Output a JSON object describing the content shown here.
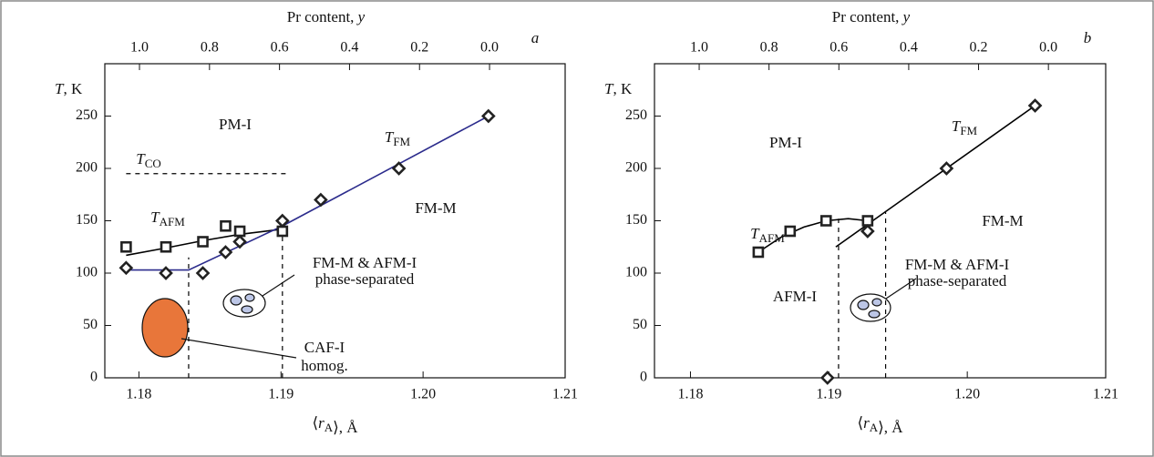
{
  "chart_data": [
    {
      "type": "scatter",
      "panel": "a",
      "x2label": {
        "pre": "Pr content, ",
        "var": "y"
      },
      "ylabel": {
        "var": "T",
        "post": ", K"
      },
      "xlabel": {
        "pre": "⟨",
        "var": "r",
        "sub": "A",
        "post": "⟩, Å"
      },
      "xlim": [
        1.1776,
        1.21
      ],
      "xticks": [
        1.18,
        1.19,
        {
          "value": 1.2,
          "label": "1.20"
        },
        1.21
      ],
      "x2lim": [
        1.099,
        -0.216
      ],
      "x2ticks": [
        {
          "value": 1,
          "label": "1.0"
        },
        0.8,
        0.6,
        0.4,
        0.2,
        {
          "value": 0,
          "label": "0.0"
        }
      ],
      "ylim": [
        0,
        300
      ],
      "yticks": [
        0,
        50,
        100,
        150,
        200,
        250
      ],
      "series": [
        {
          "marker": "square",
          "color": "#222222",
          "x": [
            1.1791,
            1.1819,
            1.1845,
            1.1861,
            1.1871,
            1.1901
          ],
          "y": [
            125,
            125,
            130,
            145,
            140,
            140
          ]
        },
        {
          "marker": "diamond",
          "color": "#222222",
          "x": [
            1.1791,
            1.1819,
            1.1845,
            1.1861,
            1.1871,
            1.1901,
            1.1928,
            1.1983,
            1.2046
          ],
          "y": [
            105,
            100,
            100,
            120,
            130,
            150,
            170,
            200,
            250
          ]
        }
      ],
      "lines": [
        {
          "color": "#000000",
          "dash": false,
          "x": [
            1.1791,
            1.1819,
            1.1845,
            1.1871,
            1.1901
          ],
          "y": [
            117,
            124,
            131,
            137,
            142
          ]
        },
        {
          "color": "#2b2b8c",
          "dash": false,
          "x": [
            1.1791,
            1.1835,
            1.1901,
            1.2046
          ],
          "y": [
            103,
            103,
            145,
            250
          ]
        },
        {
          "color": "#000000",
          "dash": true,
          "x": [
            1.1791,
            1.1905
          ],
          "y": [
            195,
            195
          ]
        },
        {
          "color": "#000000",
          "dash": true,
          "x": [
            1.1835,
            1.1835
          ],
          "y": [
            0,
            115
          ]
        },
        {
          "color": "#000000",
          "dash": true,
          "x": [
            1.1901,
            1.1901
          ],
          "y": [
            0,
            150
          ]
        }
      ],
      "labels": [
        {
          "text": "PM-I"
        },
        {
          "text": "T",
          "sub": "FM"
        },
        {
          "text": "T",
          "sub": "CO"
        },
        {
          "text": "FM-M"
        },
        {
          "text": "T",
          "sub": "AFM"
        },
        {
          "text": "FM-M & AFM-I"
        },
        {
          "text": "phase-separated"
        },
        {
          "text": "CAF-I"
        },
        {
          "text": "homog."
        },
        {
          "text": "a"
        }
      ]
    },
    {
      "type": "scatter",
      "panel": "b",
      "x2label": {
        "pre": "Pr content, ",
        "var": "y"
      },
      "ylabel": {
        "var": "T",
        "post": ", K"
      },
      "xlabel": {
        "pre": "⟨",
        "var": "r",
        "sub": "A",
        "post": "⟩, Å"
      },
      "xlim": [
        1.1774,
        1.21
      ],
      "xticks": [
        1.18,
        1.19,
        {
          "value": 1.2,
          "label": "1.20"
        },
        1.21
      ],
      "x2lim": [
        1.128,
        -0.164
      ],
      "x2ticks": [
        {
          "value": 1,
          "label": "1.0"
        },
        0.8,
        0.6,
        0.4,
        0.2,
        {
          "value": 0,
          "label": "0.0"
        }
      ],
      "ylim": [
        0,
        300
      ],
      "yticks": [
        0,
        50,
        100,
        150,
        200,
        250
      ],
      "series": [
        {
          "marker": "square",
          "color": "#222222",
          "x": [
            1.1849,
            1.1872,
            1.1898,
            1.1928
          ],
          "y": [
            120,
            140,
            150,
            150
          ]
        },
        {
          "marker": "diamond",
          "color": "#222222",
          "x": [
            1.1899,
            1.1928,
            1.1985,
            1.2049
          ],
          "y": [
            0,
            140,
            200,
            260
          ]
        }
      ],
      "lines": [
        {
          "color": "#000000",
          "dash": false,
          "x": [
            1.1849,
            1.1865,
            1.1882,
            1.1898,
            1.1914,
            1.1928
          ],
          "y": [
            120,
            134,
            144,
            150,
            152,
            150
          ]
        },
        {
          "color": "#000000",
          "dash": false,
          "x": [
            1.1905,
            1.2049
          ],
          "y": [
            125,
            260
          ]
        },
        {
          "color": "#000000",
          "dash": true,
          "x": [
            1.1907,
            1.1907
          ],
          "y": [
            0,
            152
          ]
        },
        {
          "color": "#000000",
          "dash": true,
          "x": [
            1.1941,
            1.1941
          ],
          "y": [
            0,
            158
          ]
        }
      ],
      "labels": [
        {
          "text": "PM-I"
        },
        {
          "text": "T",
          "sub": "FM"
        },
        {
          "text": "T",
          "sub": "AFM"
        },
        {
          "text": "FM-M"
        },
        {
          "text": "AFM-I"
        },
        {
          "text": "FM-M & AFM-I"
        },
        {
          "text": "phase-separated"
        },
        {
          "text": "b"
        }
      ]
    }
  ]
}
